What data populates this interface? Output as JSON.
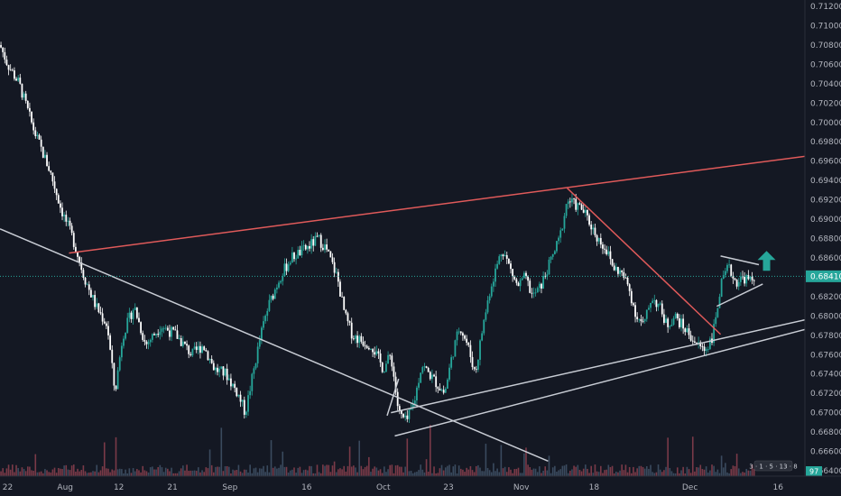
{
  "chart_data": {
    "type": "candlestick",
    "title": "",
    "x_tick_labels": [
      "22",
      "Aug",
      "12",
      "21",
      "Sep",
      "16",
      "Oct",
      "23",
      "Nov",
      "18",
      "Dec",
      "16"
    ],
    "y_tick_labels": [
      "0.71200",
      "0.71000",
      "0.70800",
      "0.70600",
      "0.70400",
      "0.70200",
      "0.70000",
      "0.69800",
      "0.69600",
      "0.69400",
      "0.69200",
      "0.69000",
      "0.68800",
      "0.68600",
      "0.68200",
      "0.68000",
      "0.67800",
      "0.67600",
      "0.67400",
      "0.67200",
      "0.67000",
      "0.66800",
      "0.66600",
      "0.66400"
    ],
    "ylim": [
      0.663,
      0.7125
    ],
    "last_price": 0.6841,
    "last_price_label": "0.68410",
    "volume_label": "97",
    "path_points": [
      {
        "t": 0,
        "p": 0.708
      },
      {
        "t": 2,
        "p": 0.706
      },
      {
        "t": 5,
        "p": 0.704
      },
      {
        "t": 9,
        "p": 0.699
      },
      {
        "t": 13,
        "p": 0.695
      },
      {
        "t": 16,
        "p": 0.691
      },
      {
        "t": 19,
        "p": 0.688
      },
      {
        "t": 22,
        "p": 0.684
      },
      {
        "t": 25,
        "p": 0.681
      },
      {
        "t": 28,
        "p": 0.679
      },
      {
        "t": 30,
        "p": 0.672
      },
      {
        "t": 32,
        "p": 0.678
      },
      {
        "t": 35,
        "p": 0.681
      },
      {
        "t": 38,
        "p": 0.677
      },
      {
        "t": 42,
        "p": 0.679
      },
      {
        "t": 46,
        "p": 0.678
      },
      {
        "t": 50,
        "p": 0.676
      },
      {
        "t": 53,
        "p": 0.677
      },
      {
        "t": 56,
        "p": 0.6745
      },
      {
        "t": 59,
        "p": 0.674
      },
      {
        "t": 62,
        "p": 0.672
      },
      {
        "t": 64,
        "p": 0.67
      },
      {
        "t": 66,
        "p": 0.674
      },
      {
        "t": 68,
        "p": 0.678
      },
      {
        "t": 70,
        "p": 0.681
      },
      {
        "t": 73,
        "p": 0.684
      },
      {
        "t": 76,
        "p": 0.686
      },
      {
        "t": 80,
        "p": 0.687
      },
      {
        "t": 83,
        "p": 0.688
      },
      {
        "t": 85,
        "p": 0.687
      },
      {
        "t": 88,
        "p": 0.684
      },
      {
        "t": 90,
        "p": 0.68
      },
      {
        "t": 92,
        "p": 0.678
      },
      {
        "t": 94,
        "p": 0.6775
      },
      {
        "t": 97,
        "p": 0.677
      },
      {
        "t": 100,
        "p": 0.6745
      },
      {
        "t": 102,
        "p": 0.676
      },
      {
        "t": 104,
        "p": 0.67
      },
      {
        "t": 106,
        "p": 0.669
      },
      {
        "t": 108,
        "p": 0.671
      },
      {
        "t": 110,
        "p": 0.675
      },
      {
        "t": 112,
        "p": 0.674
      },
      {
        "t": 114,
        "p": 0.673
      },
      {
        "t": 116,
        "p": 0.672
      },
      {
        "t": 118,
        "p": 0.676
      },
      {
        "t": 120,
        "p": 0.679
      },
      {
        "t": 122,
        "p": 0.677
      },
      {
        "t": 124,
        "p": 0.674
      },
      {
        "t": 126,
        "p": 0.679
      },
      {
        "t": 128,
        "p": 0.683
      },
      {
        "t": 131,
        "p": 0.687
      },
      {
        "t": 133,
        "p": 0.685
      },
      {
        "t": 135,
        "p": 0.683
      },
      {
        "t": 137,
        "p": 0.684
      },
      {
        "t": 139,
        "p": 0.682
      },
      {
        "t": 141,
        "p": 0.683
      },
      {
        "t": 144,
        "p": 0.686
      },
      {
        "t": 146,
        "p": 0.688
      },
      {
        "t": 148,
        "p": 0.692
      },
      {
        "t": 150,
        "p": 0.6915
      },
      {
        "t": 152,
        "p": 0.691
      },
      {
        "t": 154,
        "p": 0.6895
      },
      {
        "t": 156,
        "p": 0.688
      },
      {
        "t": 158,
        "p": 0.687
      },
      {
        "t": 160,
        "p": 0.685
      },
      {
        "t": 162,
        "p": 0.6845
      },
      {
        "t": 164,
        "p": 0.683
      },
      {
        "t": 166,
        "p": 0.68
      },
      {
        "t": 168,
        "p": 0.679
      },
      {
        "t": 170,
        "p": 0.682
      },
      {
        "t": 172,
        "p": 0.681
      },
      {
        "t": 174,
        "p": 0.679
      },
      {
        "t": 176,
        "p": 0.68
      },
      {
        "t": 178,
        "p": 0.679
      },
      {
        "t": 180,
        "p": 0.678
      },
      {
        "t": 182,
        "p": 0.677
      },
      {
        "t": 184,
        "p": 0.6765
      },
      {
        "t": 186,
        "p": 0.678
      },
      {
        "t": 188,
        "p": 0.683
      },
      {
        "t": 190,
        "p": 0.685
      },
      {
        "t": 192,
        "p": 0.6835
      },
      {
        "t": 194,
        "p": 0.684
      },
      {
        "t": 196,
        "p": 0.6835
      },
      {
        "t": 197,
        "p": 0.6841
      }
    ],
    "trend_lines": [
      {
        "name": "resistance-line",
        "color": "#e05a5a",
        "points": [
          {
            "t": 18,
            "p": 0.6865
          },
          {
            "t": 210,
            "p": 0.6965
          }
        ]
      },
      {
        "name": "descending-resistance-line",
        "color": "#e05a5a",
        "points": [
          {
            "t": 148,
            "p": 0.6932
          },
          {
            "t": 188,
            "p": 0.6781
          }
        ]
      },
      {
        "name": "long-downtrend-line",
        "color": "#c8ccd4",
        "points": [
          {
            "t": 0,
            "p": 0.689
          },
          {
            "t": 143,
            "p": 0.665
          }
        ]
      },
      {
        "name": "support-line-upper",
        "color": "#c8ccd4",
        "points": [
          {
            "t": 102,
            "p": 0.67
          },
          {
            "t": 210,
            "p": 0.6796
          }
        ]
      },
      {
        "name": "support-line-lower",
        "color": "#c8ccd4",
        "points": [
          {
            "t": 103,
            "p": 0.6676
          },
          {
            "t": 210,
            "p": 0.6786
          }
        ]
      },
      {
        "name": "support-channel-left-edge",
        "color": "#c8ccd4",
        "points": [
          {
            "t": 101,
            "p": 0.6697
          },
          {
            "t": 104,
            "p": 0.6735
          }
        ]
      },
      {
        "name": "triangle-upper-line",
        "color": "#c8ccd4",
        "points": [
          {
            "t": 188,
            "p": 0.6862
          },
          {
            "t": 198,
            "p": 0.6853
          }
        ]
      },
      {
        "name": "triangle-lower-line",
        "color": "#c8ccd4",
        "points": [
          {
            "t": 187,
            "p": 0.681
          },
          {
            "t": 199,
            "p": 0.6833
          }
        ]
      }
    ],
    "annotation": {
      "icon": "up-arrow-icon",
      "color": "#26a69a",
      "t": 200,
      "p": 0.6856
    },
    "colors": {
      "background": "#141823",
      "up_candle": "#26a69a",
      "down_candle": "#ffffff",
      "axis_text": "#b2b5be",
      "price_line": "#26a69a",
      "volume_bar": "#3a4a5e",
      "volume_bar_red": "#7a3a48"
    }
  },
  "indicator_badge": "3 · 1 · 5 · 13 · 8",
  "icons": [
    "up-arrow-icon",
    "settings-dots-icon"
  ]
}
